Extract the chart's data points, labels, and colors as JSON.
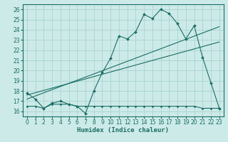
{
  "background_color": "#cceae8",
  "grid_color": "#aad4d0",
  "line_color": "#1a6e65",
  "xlabel": "Humidex (Indice chaleur)",
  "ylim": [
    15.5,
    26.5
  ],
  "xlim": [
    -0.5,
    23.5
  ],
  "yticks": [
    16,
    17,
    18,
    19,
    20,
    21,
    22,
    23,
    24,
    25,
    26
  ],
  "xticks": [
    0,
    1,
    2,
    3,
    4,
    5,
    6,
    7,
    8,
    9,
    10,
    11,
    12,
    13,
    14,
    15,
    16,
    17,
    18,
    19,
    20,
    21,
    22,
    23
  ],
  "main_x": [
    0,
    1,
    2,
    3,
    4,
    5,
    6,
    7,
    8,
    9,
    10,
    11,
    12,
    13,
    14,
    15,
    16,
    17,
    18,
    19,
    20,
    21,
    22,
    23
  ],
  "main_y": [
    17.8,
    17.2,
    16.3,
    16.8,
    17.0,
    16.7,
    16.5,
    15.8,
    18.0,
    19.8,
    21.2,
    23.4,
    23.1,
    23.8,
    25.5,
    25.1,
    26.0,
    25.6,
    24.6,
    23.1,
    24.4,
    21.3,
    18.8,
    16.3
  ],
  "flat_x": [
    0,
    1,
    2,
    3,
    4,
    5,
    6,
    7,
    8,
    9,
    10,
    11,
    12,
    13,
    14,
    15,
    16,
    17,
    18,
    19,
    20,
    21,
    22,
    23
  ],
  "flat_y": [
    16.5,
    16.5,
    16.3,
    16.7,
    16.7,
    16.7,
    16.5,
    16.5,
    16.5,
    16.5,
    16.5,
    16.5,
    16.5,
    16.5,
    16.5,
    16.5,
    16.5,
    16.5,
    16.5,
    16.5,
    16.5,
    16.3,
    16.3,
    16.3
  ],
  "trend1_x": [
    0,
    23
  ],
  "trend1_y": [
    17.2,
    24.3
  ],
  "trend2_x": [
    0,
    23
  ],
  "trend2_y": [
    17.6,
    22.8
  ]
}
